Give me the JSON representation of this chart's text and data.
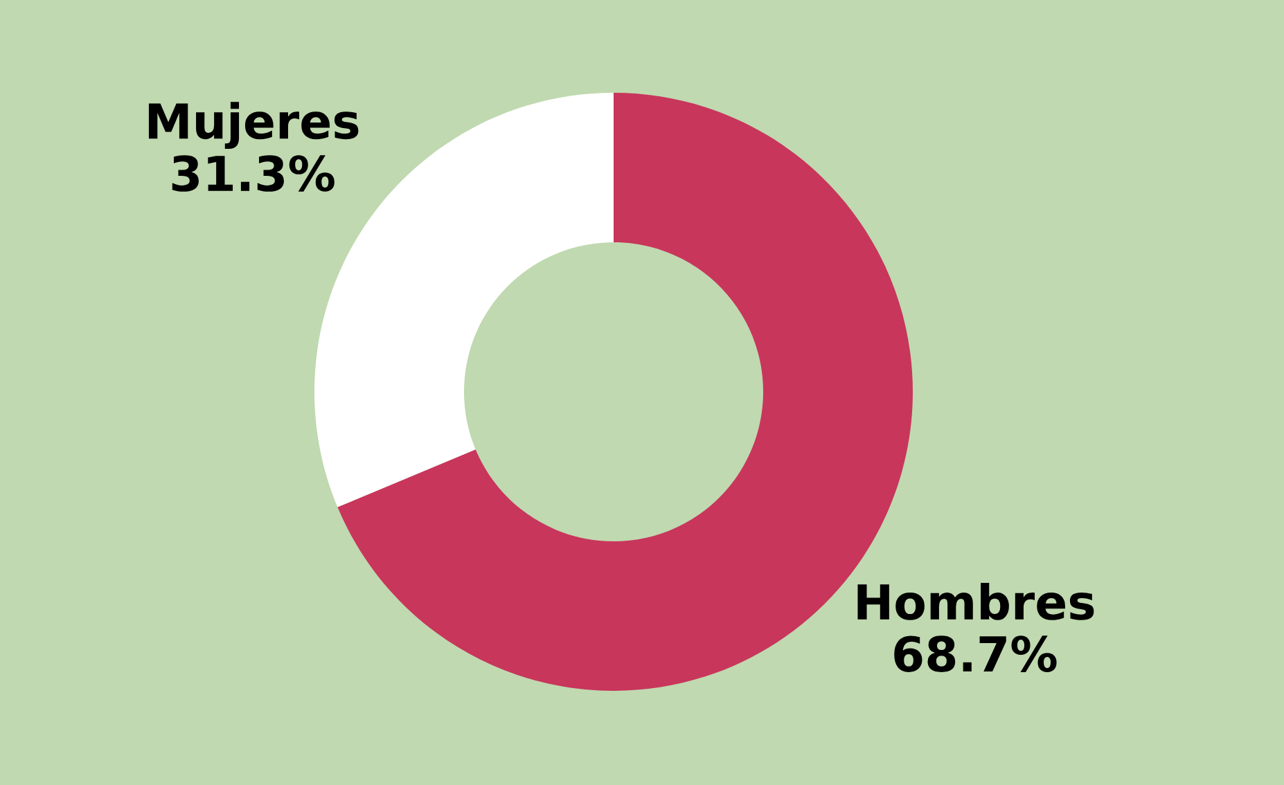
{
  "chart_data": {
    "type": "donut",
    "categories": [
      "Hombres",
      "Mujeres"
    ],
    "values": [
      68.7,
      31.3
    ],
    "colors": [
      "#c8365c",
      "#ffffff"
    ],
    "value_labels": [
      "68.7%",
      "31.3%"
    ]
  }
}
